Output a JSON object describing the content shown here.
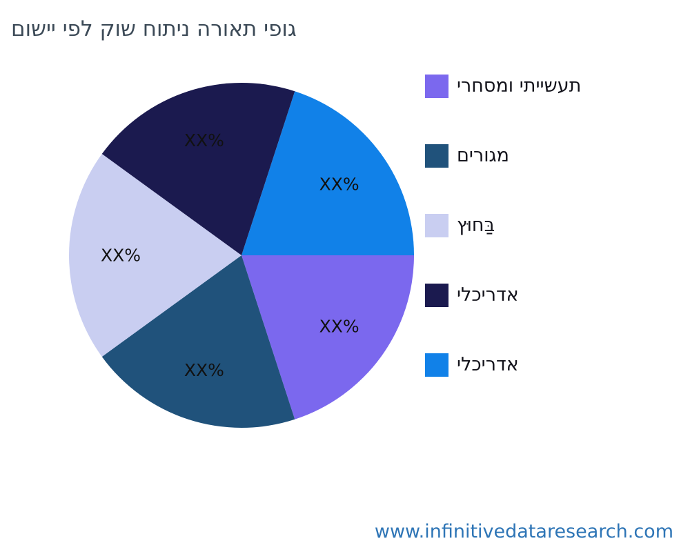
{
  "title": "גופי תאורה ניתוח שוק לפי יישום",
  "footer": {
    "url_text": "www.infinitivedataresearch.com",
    "color": "#2e75b6"
  },
  "chart_data": {
    "type": "pie",
    "title": "גופי תאורה ניתוח שוק לפי יישום",
    "start_angle_deg": 18,
    "direction": "clockwise",
    "value_labels_are_placeholders": true,
    "slices": [
      {
        "label": "אדריכלי",
        "value": 20,
        "display": "XX%",
        "color": "#1181e8"
      },
      {
        "label": "תעשייתי ומסחרי",
        "value": 20,
        "display": "XX%",
        "color": "#7b68ee"
      },
      {
        "label": "מגורים",
        "value": 20,
        "display": "XX%",
        "color": "#20527b"
      },
      {
        "label": "בַּחוּץ",
        "value": 20,
        "display": "XX%",
        "color": "#c9cef1"
      },
      {
        "label": "אדריכלי",
        "value": 20,
        "display": "XX%",
        "color": "#1b1a4f"
      }
    ],
    "legend": {
      "position": "right",
      "items": [
        {
          "label": "תעשייתי ומסחרי",
          "color": "#7b68ee"
        },
        {
          "label": "מגורים",
          "color": "#20527b"
        },
        {
          "label": "בַּחוּץ",
          "color": "#c9cef1"
        },
        {
          "label": "אדריכלי",
          "color": "#1b1a4f"
        },
        {
          "label": "אדריכלי",
          "color": "#1181e8"
        }
      ]
    }
  }
}
